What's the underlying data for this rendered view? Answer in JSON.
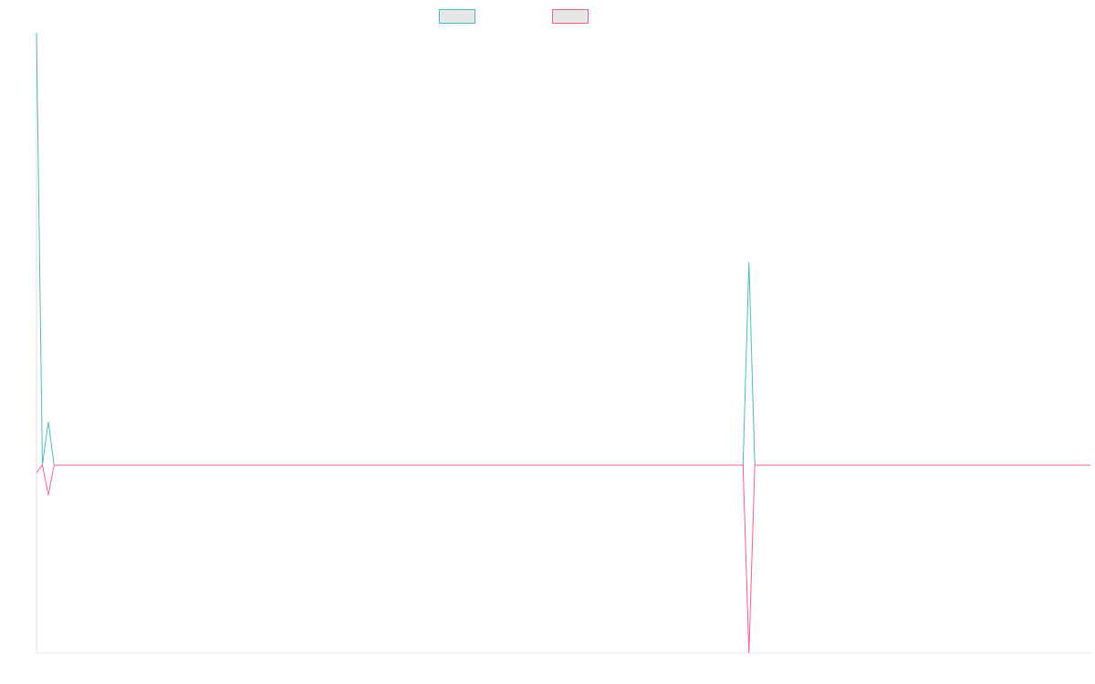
{
  "chart_data": {
    "type": "line",
    "title": "",
    "xlabel": "",
    "ylabel": "",
    "grid": false,
    "legend_position": "top-center",
    "x": [
      0,
      1,
      2,
      3,
      4,
      5,
      6,
      7,
      8,
      9,
      10,
      11,
      12,
      13,
      14,
      15,
      16,
      17,
      18,
      19,
      20,
      21,
      22,
      23,
      24,
      25,
      26,
      27,
      28,
      29,
      30,
      31,
      32,
      33,
      34,
      35,
      36,
      37,
      38,
      39,
      40,
      41,
      42,
      43,
      44,
      45,
      46,
      47,
      48,
      49,
      50,
      51,
      52,
      53,
      54,
      55,
      56,
      57,
      58,
      59,
      60,
      61,
      62,
      63,
      64,
      65,
      66,
      67,
      68,
      69,
      70,
      71,
      72,
      73,
      74,
      75,
      76,
      77,
      78,
      79,
      80,
      81,
      82,
      83,
      84,
      85,
      86,
      87,
      88,
      89,
      90,
      91,
      92,
      93,
      94,
      95,
      96,
      97,
      98,
      99,
      100,
      101,
      102,
      103,
      104,
      105,
      106,
      107,
      108,
      109,
      110,
      111,
      112,
      113,
      114,
      115,
      116,
      117,
      118,
      119,
      120,
      121,
      122,
      123,
      124,
      125,
      126,
      127,
      128,
      129,
      130,
      131,
      132,
      133,
      134,
      135,
      136,
      137,
      138,
      139,
      140,
      141,
      142,
      143,
      144,
      145,
      146,
      147,
      148,
      149,
      150,
      151,
      152,
      153,
      154,
      155,
      156,
      157,
      158,
      159,
      160,
      161,
      162,
      163,
      164,
      165,
      166,
      167,
      168,
      169,
      170,
      171,
      172,
      173,
      174,
      175,
      176,
      177,
      178,
      179
    ],
    "ylim": [
      -1,
      2.3
    ],
    "series": [
      {
        "name": "",
        "color": "#4bc0c0",
        "values": [
          2.3,
          0.0,
          0.23,
          0,
          0,
          0,
          0,
          0,
          0,
          0,
          0,
          0,
          0,
          0,
          0,
          0,
          0,
          0,
          0,
          0,
          0,
          0,
          0,
          0,
          0,
          0,
          0,
          0,
          0,
          0,
          0,
          0,
          0,
          0,
          0,
          0,
          0,
          0,
          0,
          0,
          0,
          0,
          0,
          0,
          0,
          0,
          0,
          0,
          0,
          0,
          0,
          0,
          0,
          0,
          0,
          0,
          0,
          0,
          0,
          0,
          0,
          0,
          0,
          0,
          0,
          0,
          0,
          0,
          0,
          0,
          0,
          0,
          0,
          0,
          0,
          0,
          0,
          0,
          0,
          0,
          0,
          0,
          0,
          0,
          0,
          0,
          0,
          0,
          0,
          0,
          0,
          0,
          0,
          0,
          0,
          0,
          0,
          0,
          0,
          0,
          0,
          0,
          0,
          0,
          0,
          0,
          0,
          0,
          0,
          0,
          0,
          0,
          0,
          0,
          0,
          0,
          0,
          0,
          0,
          0,
          0,
          1.08,
          0,
          0,
          0,
          0,
          0,
          0,
          0,
          0,
          0,
          0,
          0,
          0,
          0,
          0,
          0,
          0,
          0,
          0,
          0,
          0,
          0,
          0,
          0,
          0,
          0,
          0,
          0,
          0,
          0,
          0,
          0,
          0,
          0,
          0,
          0,
          0,
          0,
          0,
          0,
          0,
          0,
          0,
          0,
          0,
          0,
          0,
          0,
          0,
          0,
          0,
          0,
          0,
          0,
          0,
          0,
          0,
          0,
          0
        ]
      },
      {
        "name": "",
        "color": "#ff6384",
        "values": [
          -0.04,
          0.0,
          -0.16,
          0,
          0,
          0,
          0,
          0,
          0,
          0,
          0,
          0,
          0,
          0,
          0,
          0,
          0,
          0,
          0,
          0,
          0,
          0,
          0,
          0,
          0,
          0,
          0,
          0,
          0,
          0,
          0,
          0,
          0,
          0,
          0,
          0,
          0,
          0,
          0,
          0,
          0,
          0,
          0,
          0,
          0,
          0,
          0,
          0,
          0,
          0,
          0,
          0,
          0,
          0,
          0,
          0,
          0,
          0,
          0,
          0,
          0,
          0,
          0,
          0,
          0,
          0,
          0,
          0,
          0,
          0,
          0,
          0,
          0,
          0,
          0,
          0,
          0,
          0,
          0,
          0,
          0,
          0,
          0,
          0,
          0,
          0,
          0,
          0,
          0,
          0,
          0,
          0,
          0,
          0,
          0,
          0,
          0,
          0,
          0,
          0,
          0,
          0,
          0,
          0,
          0,
          0,
          0,
          0,
          0,
          0,
          0,
          0,
          0,
          0,
          0,
          0,
          0,
          0,
          0,
          0,
          0,
          -1.0,
          0,
          0,
          0,
          0,
          0,
          0,
          0,
          0,
          0,
          0,
          0,
          0,
          0,
          0,
          0,
          0,
          0,
          0,
          0,
          0,
          0,
          0,
          0,
          0,
          0,
          0,
          0,
          0,
          0,
          0,
          0,
          0,
          0,
          0,
          0,
          0,
          0,
          0,
          0,
          0,
          0,
          0,
          0,
          0,
          0,
          0,
          0,
          0,
          0,
          0,
          0,
          0,
          0,
          0,
          0,
          0,
          0,
          0
        ]
      }
    ]
  }
}
